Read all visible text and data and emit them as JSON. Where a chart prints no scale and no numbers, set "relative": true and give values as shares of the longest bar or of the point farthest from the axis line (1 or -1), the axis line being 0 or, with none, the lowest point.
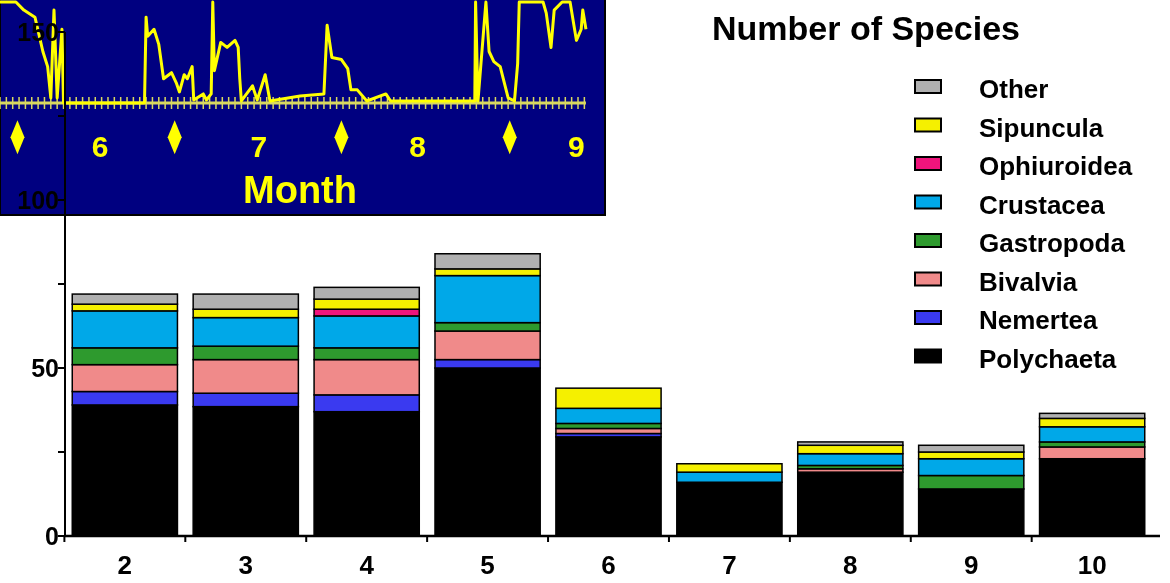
{
  "chart_data": [
    {
      "type": "bar",
      "title": "Number of Species",
      "categories": [
        "2",
        "3",
        "4",
        "5",
        "6",
        "7",
        "8",
        "9",
        "10"
      ],
      "stacked": true,
      "ylim": [
        0,
        150
      ],
      "yticks": [
        0,
        {
          "value": 25,
          "label": null
        },
        50,
        {
          "value": 75,
          "label": null
        },
        100,
        {
          "value": 125,
          "label": null
        },
        150
      ],
      "legend": "right",
      "series": [
        {
          "name": "Polychaeta",
          "color": "#000000",
          "values": [
            39,
            38.5,
            37,
            50,
            29.5,
            16,
            19,
            14,
            23
          ]
        },
        {
          "name": "Nemertea",
          "color": "#3a3af0",
          "values": [
            4,
            4,
            5,
            2.5,
            1,
            0,
            0,
            0,
            null
          ]
        },
        {
          "name": "Bivalvia",
          "color": "#f08a8a",
          "values": [
            8,
            10,
            10.5,
            8.5,
            1.5,
            0,
            1,
            0,
            3.5
          ]
        },
        {
          "name": "Gastropoda",
          "color": "#2e9a2e",
          "values": [
            5,
            4,
            3.5,
            2.5,
            1.5,
            0,
            1,
            4,
            1.5
          ]
        },
        {
          "name": "Crustacea",
          "color": "#00a8e8",
          "values": [
            11,
            8.5,
            9.5,
            14,
            4.5,
            3,
            3.5,
            5,
            4.5
          ]
        },
        {
          "name": "Ophiuroidea",
          "color": "#f0147c",
          "values": [
            0,
            0,
            2,
            0,
            0,
            0,
            0,
            0,
            0
          ]
        },
        {
          "name": "Sipuncula",
          "color": "#f5f000",
          "values": [
            2,
            2.5,
            3,
            2,
            6,
            2.5,
            2.5,
            2,
            2.5
          ]
        },
        {
          "name": "Other",
          "color": "#b0b0b0",
          "values": [
            3,
            4.5,
            3.5,
            4.5,
            0,
            0,
            1,
            2,
            1.5
          ]
        }
      ]
    },
    {
      "type": "line",
      "relative": true,
      "xlabel": "Month",
      "xlim": [
        5.37,
        9.18
      ],
      "xticks": [
        6,
        7,
        8,
        9
      ],
      "series": [
        {
          "color": "#ffff00",
          "x": [
            5.37,
            5.47,
            5.52,
            5.59,
            5.64,
            5.67,
            5.69,
            5.71,
            5.73,
            5.76,
            5.77,
            6.28,
            6.29,
            6.3,
            6.34,
            6.37,
            6.4,
            6.45,
            6.48,
            6.5,
            6.53,
            6.55,
            6.58,
            6.59,
            6.65,
            6.67,
            6.7,
            6.71,
            6.72,
            6.76,
            6.8,
            6.85,
            6.87,
            6.88,
            6.89,
            6.96,
            6.99,
            7.04,
            7.07,
            7.26,
            7.41,
            7.43,
            7.46,
            7.52,
            7.56,
            7.58,
            7.62,
            7.68,
            7.8,
            7.83,
            8.36,
            8.365,
            8.38,
            8.43,
            8.45,
            8.48,
            8.52,
            8.57,
            8.61,
            8.63,
            8.64,
            8.79,
            8.81,
            8.84,
            8.86,
            8.91,
            8.96,
            9.0,
            9.03,
            9.04,
            9.06
          ],
          "values": [
            1,
            1,
            0.92,
            0.85,
            0.51,
            0.36,
            0.05,
            0.92,
            0.05,
            0.73,
            0,
            0,
            0.85,
            0.66,
            0.73,
            0.58,
            0.24,
            0.3,
            0.2,
            0.11,
            0.28,
            0.24,
            0.36,
            0.03,
            0.09,
            0.03,
            0.09,
            1,
            0.32,
            0.6,
            0.55,
            0.62,
            0.55,
            0.24,
            0.02,
            0.17,
            0.03,
            0.28,
            0.02,
            0.07,
            0.09,
            0.77,
            0.45,
            0.43,
            0.34,
            0.13,
            0.13,
            0.02,
            0.09,
            0.02,
            0.02,
            1,
            0.02,
            1,
            0.51,
            0.41,
            0.36,
            0.05,
            0.02,
            0.39,
            1,
            1,
            0.89,
            0.55,
            0.92,
            1,
            1,
            0.62,
            0.73,
            0.92,
            0.73
          ]
        },
        {
          "type": "scatter",
          "marker": "diamond",
          "color": "#ffff00",
          "x": [
            5.48,
            6.47,
            7.52,
            8.58
          ],
          "values": [
            -0.34,
            -0.34,
            -0.34,
            -0.34
          ]
        }
      ]
    }
  ]
}
